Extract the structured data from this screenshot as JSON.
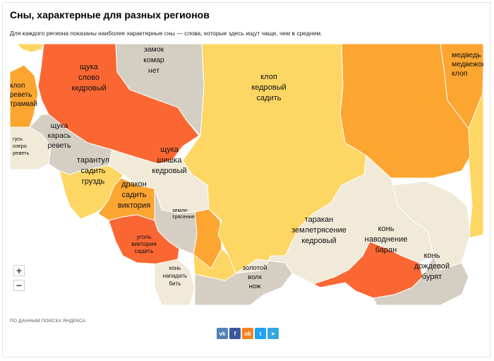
{
  "title": "Сны, характерные для разных регионов",
  "subtitle": "Для каждого региона показаны наиболее характерные сны — слова, которые здесь ищут чаще, чем в среднем.",
  "source": "ПО ДАННЫМ ПОИСКА ЯНДЕКСА.",
  "zoom": {
    "in_label": "+",
    "out_label": "−"
  },
  "colors": {
    "background": "#ffffff",
    "beige": "#f1ead9",
    "gray": "#d4cfc2",
    "yellow": "#fdd663",
    "orange": "#fca531",
    "red": "#fa6733",
    "vk": "#5181b8",
    "facebook": "#3b5998",
    "odnoklassniki": "#f58220",
    "twitter": "#1da1f2",
    "telegram": "#35a6de"
  },
  "share": [
    {
      "name": "vk",
      "glyph": "vk",
      "color": "#5181b8"
    },
    {
      "name": "facebook",
      "glyph": "f",
      "color": "#3b5998"
    },
    {
      "name": "odnoklassniki",
      "glyph": "ok",
      "color": "#f58220"
    },
    {
      "name": "twitter",
      "glyph": "t",
      "color": "#1da1f2"
    },
    {
      "name": "telegram",
      "glyph": "➤",
      "color": "#35a6de"
    }
  ],
  "regions": [
    {
      "id": "nw-top-left",
      "lines": [],
      "color": "yellow"
    },
    {
      "id": "kirov-left",
      "lines": [
        "клоп",
        "реветь",
        "трамвай"
      ],
      "color": "orange"
    },
    {
      "id": "komi",
      "lines": [
        "щука",
        "слово",
        "кедровый"
      ],
      "color": "red"
    },
    {
      "id": "arkhangelsk",
      "lines": [
        "замок",
        "комар",
        "нет"
      ],
      "color": "gray"
    },
    {
      "id": "yamal",
      "lines": [
        "клоп",
        "кедровый",
        "садить"
      ],
      "color": "yellow"
    },
    {
      "id": "taymyr",
      "lines": [],
      "color": "orange"
    },
    {
      "id": "yakutia",
      "lines": [
        "медведь",
        "медвежонок",
        "клоп"
      ],
      "color": "orange"
    },
    {
      "id": "perm",
      "lines": [
        "гусь",
        "озеро",
        "реветь"
      ],
      "color": "beige"
    },
    {
      "id": "sverdlovsk",
      "lines": [
        "щука",
        "карась",
        "реветь"
      ],
      "color": "gray"
    },
    {
      "id": "khmao",
      "lines": [
        "щука",
        "шишка",
        "кедровый"
      ],
      "color": "beige"
    },
    {
      "id": "tyumen",
      "lines": [
        "тарантул",
        "садить",
        "груздь"
      ],
      "color": "yellow"
    },
    {
      "id": "omsk",
      "lines": [
        "дракон",
        "садить",
        "виктория"
      ],
      "color": "orange"
    },
    {
      "id": "novosibirsk",
      "lines": [
        "землетрясение"
      ],
      "color": "gray"
    },
    {
      "id": "altai-krai",
      "lines": [
        "уголь",
        "виктория",
        "садить"
      ],
      "color": "red"
    },
    {
      "id": "altai-rep",
      "lines": [
        "конь",
        "нападать",
        "бить"
      ],
      "color": "beige"
    },
    {
      "id": "kemerovo",
      "lines": [],
      "color": "orange"
    },
    {
      "id": "krasnoyarsk-south",
      "lines": [],
      "color": "yellow"
    },
    {
      "id": "tuva",
      "lines": [
        "золотой",
        "волк",
        "нож"
      ],
      "color": "gray"
    },
    {
      "id": "irkutsk",
      "lines": [
        "таракан",
        "землетрясение",
        "кедровый"
      ],
      "color": "beige"
    },
    {
      "id": "buryatia",
      "lines": [
        "конь",
        "наводнение",
        "баран"
      ],
      "color": "red"
    },
    {
      "id": "zabaykalsky",
      "lines": [
        "конь",
        "дождевой",
        "бурят"
      ],
      "color": "gray"
    },
    {
      "id": "amur",
      "lines": [],
      "color": "beige"
    },
    {
      "id": "khabarovsk-edge",
      "lines": [],
      "color": "yellow"
    }
  ]
}
